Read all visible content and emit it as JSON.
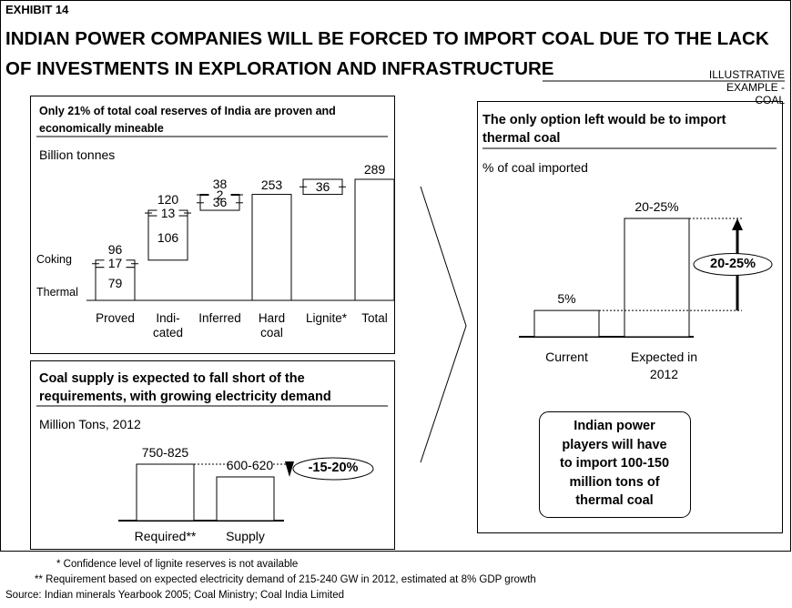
{
  "header": {
    "exhibit": "EXHIBIT 14",
    "title": "INDIAN POWER COMPANIES WILL BE FORCED TO IMPORT COAL DUE TO THE LACK OF INVESTMENTS IN EXPLORATION AND INFRASTRUCTURE",
    "tag": "ILLUSTRATIVE EXAMPLE - COAL"
  },
  "chart_data": [
    {
      "type": "waterfall",
      "title": "Only 21% of total coal reserves of India are proven and economically mineable",
      "subtitle": "Billion tonnes",
      "series_names": [
        "Thermal",
        "Coking"
      ],
      "categories": [
        "Proved",
        "Indi-\ncated",
        "Inferred",
        "Hard\ncoal",
        "Lignite*",
        "Total"
      ],
      "values": [
        [
          79,
          17
        ],
        [
          106,
          13
        ],
        [
          36,
          2
        ],
        [
          253
        ],
        [
          36
        ],
        [
          289
        ]
      ],
      "totals": [
        96,
        120,
        38,
        null,
        null,
        null
      ]
    },
    {
      "type": "bar",
      "title": "Coal supply is expected to fall short of the requirements, with growing electricity demand",
      "subtitle": "Million Tons, 2012",
      "categories": [
        "Required**",
        "Supply"
      ],
      "values": [
        787.5,
        610
      ],
      "value_labels": [
        "750-825",
        "600-620"
      ],
      "annotation": "-15-20%"
    },
    {
      "type": "bar",
      "title": "The only option left would be to import thermal coal",
      "subtitle": "% of coal imported",
      "categories": [
        "Current",
        "Expected in\n2012"
      ],
      "values": [
        5,
        22.5
      ],
      "value_labels": [
        "5%",
        "20-25%"
      ],
      "annotation": "20-25%"
    }
  ],
  "callout": [
    "Indian power",
    "players will have",
    "to import 100-150",
    "million tons of",
    "thermal coal"
  ],
  "footnotes": [
    "* Confidence level of lignite reserves is not available",
    "** Requirement based on expected electricity demand of 215-240 GW in 2012, estimated at 8% GDP growth",
    "Source: Indian minerals Yearbook 2005; Coal Ministry; Coal India Limited"
  ]
}
